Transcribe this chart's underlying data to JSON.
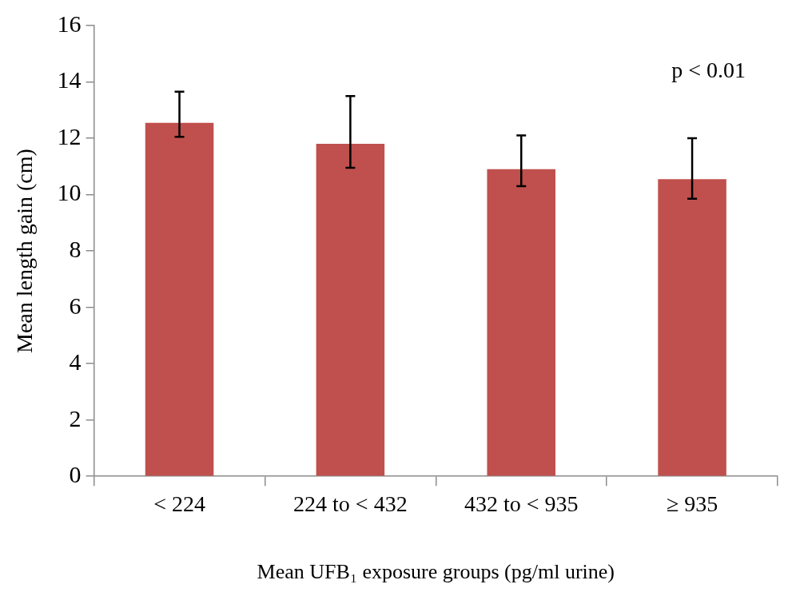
{
  "chart_data": {
    "type": "bar",
    "categories": [
      "< 224",
      "224 to < 432",
      "432 to < 935",
      "≥ 935"
    ],
    "values": [
      12.55,
      11.8,
      10.9,
      10.55
    ],
    "errors": [
      [
        12.05,
        13.65
      ],
      [
        10.95,
        13.5
      ],
      [
        10.3,
        12.1
      ],
      [
        9.85,
        12.0
      ]
    ],
    "color": "#c0504d",
    "ylim": [
      0,
      16
    ],
    "yticks": [
      0,
      2,
      4,
      6,
      8,
      10,
      12,
      14,
      16
    ],
    "xlabel": "Mean UFB₁ exposure groups (pg/ml urine)",
    "ylabel": "Mean length gain (cm)",
    "annotations": [
      "p < 0.01"
    ],
    "legend": false
  }
}
